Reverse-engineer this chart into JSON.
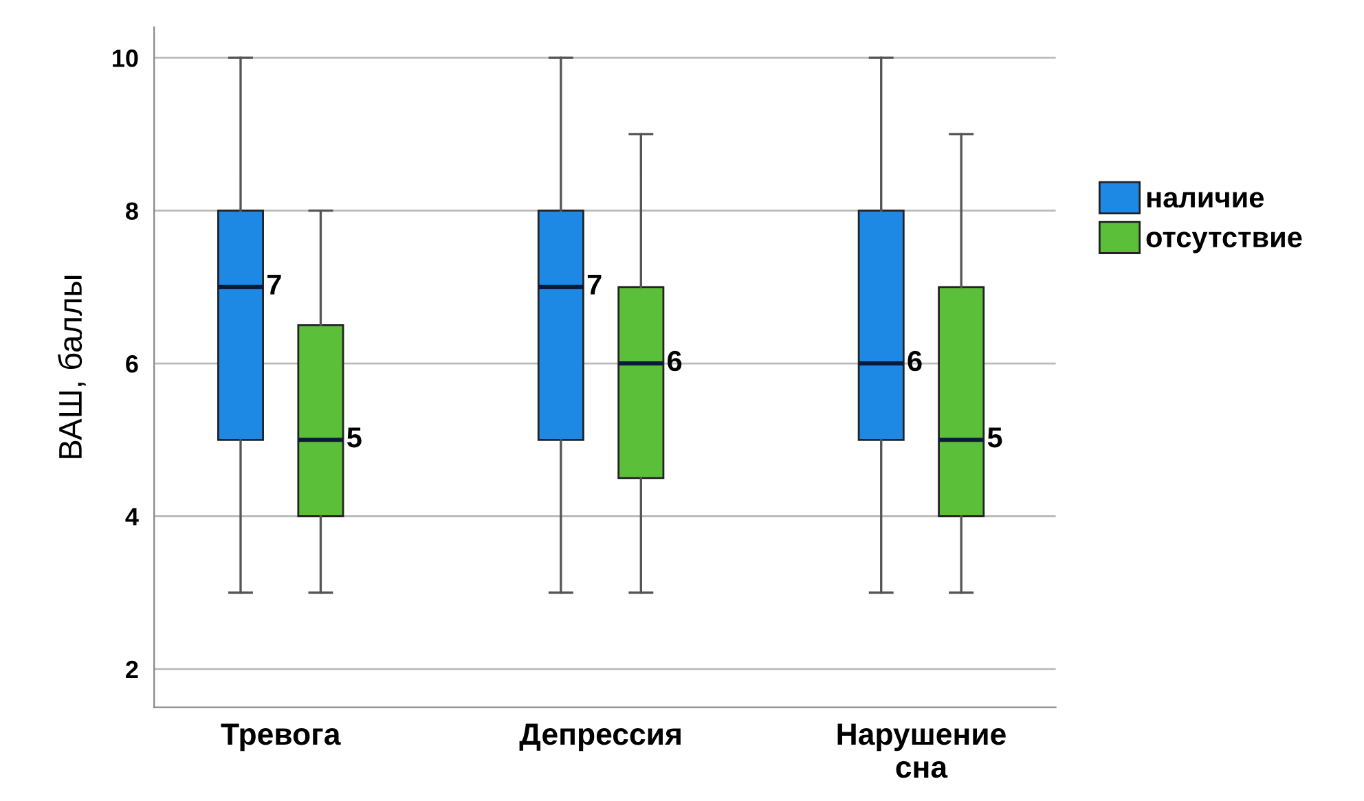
{
  "chart_data": {
    "type": "box",
    "ylabel": "ВАШ, баллы",
    "categories": [
      "Тревога",
      "Депрессия",
      "Нарушение\nсна"
    ],
    "series": [
      {
        "name": "наличие",
        "color": "#1e88e5",
        "value_labels": [
          "7",
          "7",
          "6"
        ],
        "boxes": [
          {
            "low": 3,
            "q1": 5,
            "median": 7,
            "q3": 8,
            "high": 10
          },
          {
            "low": 3,
            "q1": 5,
            "median": 7,
            "q3": 8,
            "high": 10
          },
          {
            "low": 3,
            "q1": 5,
            "median": 6,
            "q3": 8,
            "high": 10
          }
        ]
      },
      {
        "name": "отсутствие",
        "color": "#5cbf3a",
        "value_labels": [
          "5",
          "6",
          "5"
        ],
        "boxes": [
          {
            "low": 3,
            "q1": 4,
            "median": 5,
            "q3": 6.5,
            "high": 8
          },
          {
            "low": 3,
            "q1": 4.5,
            "median": 6,
            "q3": 7,
            "high": 9
          },
          {
            "low": 3,
            "q1": 4,
            "median": 5,
            "q3": 7,
            "high": 9
          }
        ]
      }
    ],
    "ylim": [
      1.5,
      10.4
    ],
    "yticks": [
      2,
      4,
      6,
      8,
      10
    ],
    "grid": "y",
    "legend": "right"
  }
}
